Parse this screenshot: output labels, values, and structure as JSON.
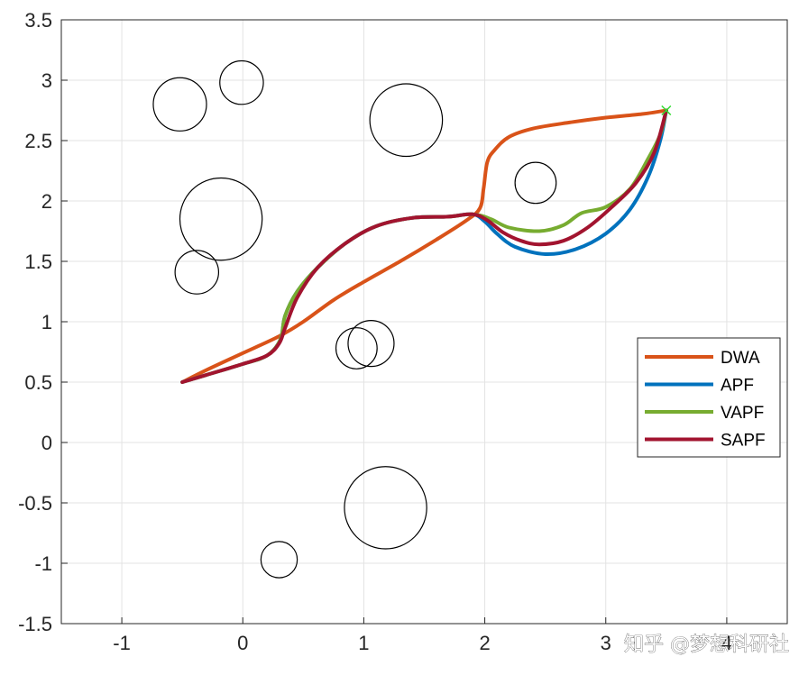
{
  "watermark": "知乎 @梦想科研社",
  "chart_data": {
    "type": "line",
    "xlim": [
      -1.5,
      4.5
    ],
    "ylim": [
      -1.5,
      3.5
    ],
    "x_ticks": [
      -1,
      0,
      1,
      2,
      3,
      4
    ],
    "y_ticks": [
      -1.5,
      -1,
      -0.5,
      0,
      0.5,
      1,
      1.5,
      2,
      2.5,
      3,
      3.5
    ],
    "x_tick_labels": [
      "-1",
      "0",
      "1",
      "2",
      "3",
      "4"
    ],
    "y_tick_labels": [
      "-1.5",
      "-1",
      "-0.5",
      "0",
      "0.5",
      "1",
      "1.5",
      "2",
      "2.5",
      "3",
      "3.5"
    ],
    "grid": true,
    "legend_position": "right-middle",
    "start": [
      -0.5,
      0.5
    ],
    "goal": [
      3.5,
      2.75
    ],
    "goal_marker_color": "#33dd33",
    "obstacles": [
      {
        "cx": -0.52,
        "cy": 2.8,
        "r": 0.22
      },
      {
        "cx": -0.01,
        "cy": 2.98,
        "r": 0.18
      },
      {
        "cx": 1.35,
        "cy": 2.67,
        "r": 0.3
      },
      {
        "cx": -0.18,
        "cy": 1.85,
        "r": 0.34
      },
      {
        "cx": -0.38,
        "cy": 1.41,
        "r": 0.18
      },
      {
        "cx": 2.42,
        "cy": 2.15,
        "r": 0.17
      },
      {
        "cx": 0.94,
        "cy": 0.78,
        "r": 0.17
      },
      {
        "cx": 1.06,
        "cy": 0.82,
        "r": 0.19
      },
      {
        "cx": 1.18,
        "cy": -0.54,
        "r": 0.34
      },
      {
        "cx": 0.3,
        "cy": -0.97,
        "r": 0.15
      }
    ],
    "series": [
      {
        "name": "DWA",
        "color": "#D95319",
        "points": [
          [
            -0.5,
            0.5
          ],
          [
            -0.3,
            0.6
          ],
          [
            0,
            0.74
          ],
          [
            0.3,
            0.88
          ],
          [
            0.5,
            1.0
          ],
          [
            0.75,
            1.18
          ],
          [
            1.0,
            1.33
          ],
          [
            1.3,
            1.5
          ],
          [
            1.6,
            1.68
          ],
          [
            1.85,
            1.84
          ],
          [
            1.96,
            1.94
          ],
          [
            1.99,
            2.1
          ],
          [
            2.02,
            2.32
          ],
          [
            2.08,
            2.42
          ],
          [
            2.2,
            2.53
          ],
          [
            2.4,
            2.6
          ],
          [
            2.7,
            2.65
          ],
          [
            3.0,
            2.69
          ],
          [
            3.3,
            2.72
          ],
          [
            3.5,
            2.75
          ]
        ]
      },
      {
        "name": "APF",
        "color": "#0072BD",
        "points": [
          [
            -0.5,
            0.5
          ],
          [
            -0.3,
            0.56
          ],
          [
            0,
            0.65
          ],
          [
            0.2,
            0.72
          ],
          [
            0.31,
            0.85
          ],
          [
            0.35,
            1.05
          ],
          [
            0.45,
            1.25
          ],
          [
            0.62,
            1.45
          ],
          [
            0.85,
            1.65
          ],
          [
            1.1,
            1.79
          ],
          [
            1.4,
            1.86
          ],
          [
            1.7,
            1.87
          ],
          [
            1.9,
            1.89
          ],
          [
            2.0,
            1.83
          ],
          [
            2.1,
            1.73
          ],
          [
            2.25,
            1.62
          ],
          [
            2.5,
            1.56
          ],
          [
            2.75,
            1.6
          ],
          [
            3.0,
            1.73
          ],
          [
            3.2,
            1.93
          ],
          [
            3.35,
            2.2
          ],
          [
            3.45,
            2.5
          ],
          [
            3.5,
            2.75
          ]
        ]
      },
      {
        "name": "VAPF",
        "color": "#77AC30",
        "points": [
          [
            -0.5,
            0.5
          ],
          [
            -0.3,
            0.56
          ],
          [
            0,
            0.65
          ],
          [
            0.2,
            0.72
          ],
          [
            0.31,
            0.85
          ],
          [
            0.35,
            1.05
          ],
          [
            0.45,
            1.25
          ],
          [
            0.62,
            1.45
          ],
          [
            0.85,
            1.65
          ],
          [
            1.1,
            1.79
          ],
          [
            1.4,
            1.86
          ],
          [
            1.7,
            1.87
          ],
          [
            1.9,
            1.89
          ],
          [
            2.05,
            1.85
          ],
          [
            2.2,
            1.78
          ],
          [
            2.45,
            1.75
          ],
          [
            2.65,
            1.8
          ],
          [
            2.8,
            1.9
          ],
          [
            3.0,
            1.95
          ],
          [
            3.2,
            2.1
          ],
          [
            3.35,
            2.35
          ],
          [
            3.45,
            2.55
          ],
          [
            3.5,
            2.75
          ]
        ]
      },
      {
        "name": "SAPF",
        "color": "#A2142F",
        "points": [
          [
            -0.5,
            0.5
          ],
          [
            -0.3,
            0.56
          ],
          [
            0,
            0.65
          ],
          [
            0.2,
            0.72
          ],
          [
            0.3,
            0.82
          ],
          [
            0.35,
            0.95
          ],
          [
            0.45,
            1.2
          ],
          [
            0.62,
            1.45
          ],
          [
            0.85,
            1.65
          ],
          [
            1.1,
            1.79
          ],
          [
            1.4,
            1.86
          ],
          [
            1.7,
            1.87
          ],
          [
            1.9,
            1.89
          ],
          [
            2.02,
            1.84
          ],
          [
            2.15,
            1.74
          ],
          [
            2.3,
            1.67
          ],
          [
            2.45,
            1.64
          ],
          [
            2.65,
            1.67
          ],
          [
            2.85,
            1.78
          ],
          [
            3.05,
            1.95
          ],
          [
            3.25,
            2.15
          ],
          [
            3.4,
            2.4
          ],
          [
            3.5,
            2.75
          ]
        ]
      }
    ]
  }
}
